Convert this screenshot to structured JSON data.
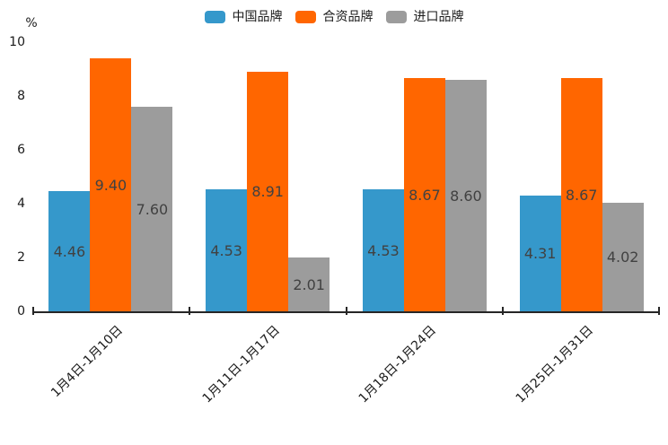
{
  "chart_data": {
    "type": "bar",
    "title": "",
    "unit_label": "%",
    "categories": [
      "1月4日-1月10日",
      "1月11日-1月17日",
      "1月18日-1月24日",
      "1月25日-1月31日"
    ],
    "series": [
      {
        "name": "中国品牌",
        "color": "#3598cb",
        "values": [
          4.46,
          4.53,
          4.53,
          4.31
        ]
      },
      {
        "name": "合资品牌",
        "color": "#ff6600",
        "values": [
          9.4,
          8.91,
          8.67,
          8.67
        ]
      },
      {
        "name": "进口品牌",
        "color": "#9c9c9c",
        "values": [
          7.6,
          2.01,
          8.6,
          4.02
        ]
      }
    ],
    "value_label_decimals": 2,
    "yticks": [
      0,
      2,
      4,
      6,
      8,
      10
    ],
    "ylim": [
      0,
      10
    ],
    "legend_position": "top",
    "grid": false,
    "colors": {
      "axis": "#262626",
      "text": "#1a1a1a",
      "value_label": "#414141",
      "background": "#ffffff"
    }
  }
}
